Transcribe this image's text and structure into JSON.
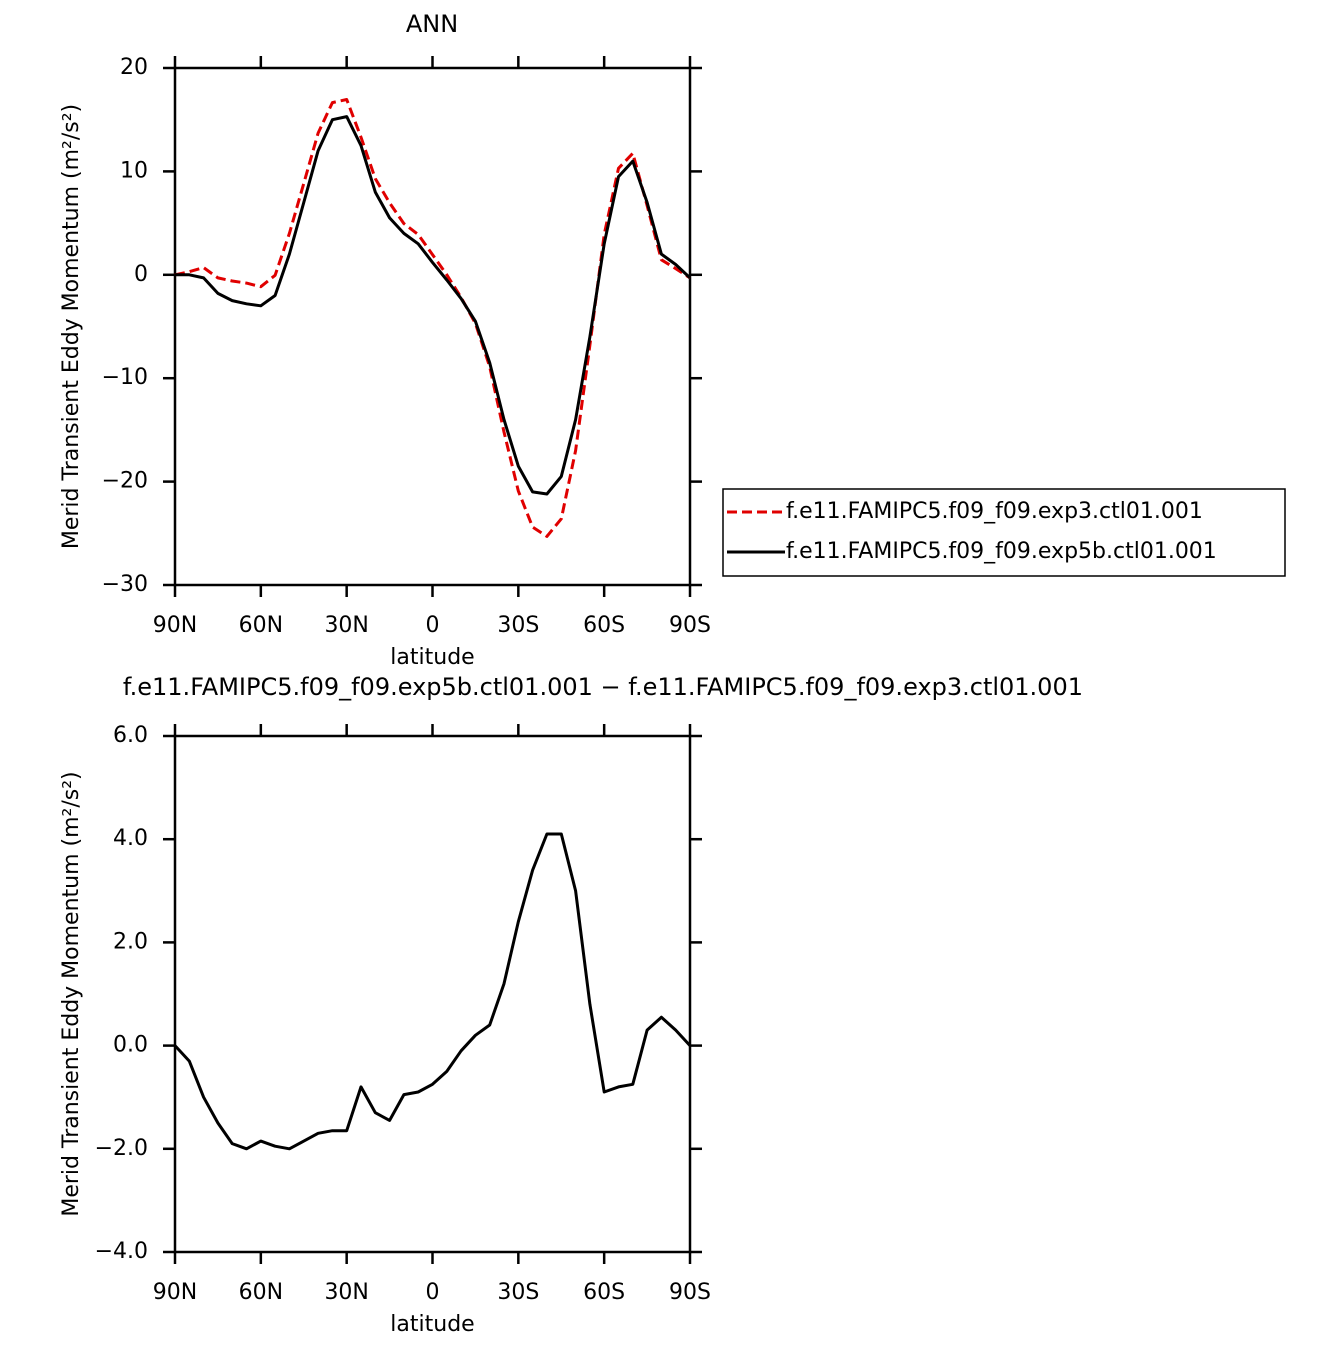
{
  "chart_data": [
    {
      "type": "line",
      "title": "ANN",
      "x_label": "latitude",
      "y_label": "Merid Transient Eddy Momentum (m²/s²)",
      "x": [
        90,
        85,
        80,
        75,
        70,
        65,
        60,
        55,
        50,
        45,
        40,
        35,
        30,
        25,
        20,
        15,
        10,
        5,
        0,
        -5,
        -10,
        -15,
        -20,
        -25,
        -30,
        -35,
        -40,
        -45,
        -50,
        -55,
        -60,
        -65,
        -70,
        -75,
        -80,
        -85,
        -90
      ],
      "xlim": [
        90,
        -90
      ],
      "xticks": [
        {
          "value": 90,
          "label": "90N"
        },
        {
          "value": 60,
          "label": "60N"
        },
        {
          "value": 30,
          "label": "30N"
        },
        0,
        {
          "value": -30,
          "label": "30S"
        },
        {
          "value": -60,
          "label": "60S"
        },
        {
          "value": -90,
          "label": "90S"
        }
      ],
      "ylim": [
        -30,
        20
      ],
      "yticks": [
        {
          "value": -30,
          "label": "−30"
        },
        {
          "value": -20,
          "label": "−20"
        },
        {
          "value": -10,
          "label": "−10"
        },
        0,
        10,
        20
      ],
      "legend": "right",
      "series": [
        {
          "name": "f.e11.FAMIPC5.f09_f09.exp3.ctl01.001",
          "color": "#e00000",
          "style": "dashed",
          "values": [
            0,
            0.3,
            0.7,
            -0.3,
            -0.6,
            -0.8,
            -1.15,
            -0.05,
            4,
            8.85,
            13.7,
            16.65,
            16.95,
            13.3,
            9.3,
            6.95,
            4.95,
            3.9,
            1.95,
            0,
            -2.2,
            -4.7,
            -8.9,
            -15.2,
            -20.9,
            -24.4,
            -25.3,
            -23.6,
            -17,
            -6.8,
            3.9,
            10.3,
            11.75,
            6.7,
            1.45,
            0.6,
            -0.3
          ]
        },
        {
          "name": "f.e11.FAMIPC5.f09_f09.exp5b.ctl01.001",
          "color": "#000000",
          "style": "solid",
          "values": [
            0,
            0,
            -0.3,
            -1.8,
            -2.5,
            -2.8,
            -3.0,
            -2.0,
            2,
            7,
            12,
            15,
            15.3,
            12.5,
            8,
            5.5,
            4,
            3,
            1.2,
            -0.5,
            -2.3,
            -4.5,
            -8.5,
            -14,
            -18.5,
            -21,
            -21.2,
            -19.5,
            -14,
            -6,
            3,
            9.5,
            11,
            7,
            2,
            1,
            -0.3
          ]
        }
      ]
    },
    {
      "type": "line",
      "title": "f.e11.FAMIPC5.f09_f09.exp5b.ctl01.001 − f.e11.FAMIPC5.f09_f09.exp3.ctl01.001",
      "x_label": "latitude",
      "y_label": "Merid Transient Eddy Momentum (m²/s²)",
      "x": [
        90,
        85,
        80,
        75,
        70,
        65,
        60,
        55,
        50,
        45,
        40,
        35,
        30,
        25,
        20,
        15,
        10,
        5,
        0,
        -5,
        -10,
        -15,
        -20,
        -25,
        -30,
        -35,
        -40,
        -45,
        -50,
        -55,
        -60,
        -65,
        -70,
        -75,
        -80,
        -85,
        -90
      ],
      "xlim": [
        90,
        -90
      ],
      "xticks": [
        {
          "value": 90,
          "label": "90N"
        },
        {
          "value": 60,
          "label": "60N"
        },
        {
          "value": 30,
          "label": "30N"
        },
        0,
        {
          "value": -30,
          "label": "30S"
        },
        {
          "value": -60,
          "label": "60S"
        },
        {
          "value": -90,
          "label": "90S"
        }
      ],
      "ylim": [
        -4,
        6
      ],
      "yticks": [
        {
          "value": -4,
          "label": "−4.0"
        },
        {
          "value": -2,
          "label": "−2.0"
        },
        {
          "value": 0,
          "label": "0.0"
        },
        {
          "value": 2,
          "label": "2.0"
        },
        {
          "value": 4,
          "label": "4.0"
        },
        {
          "value": 6,
          "label": "6.0"
        }
      ],
      "series": [
        {
          "color": "#000000",
          "style": "solid",
          "values": [
            0,
            -0.3,
            -1.0,
            -1.5,
            -1.9,
            -2.0,
            -1.85,
            -1.95,
            -2.0,
            -1.85,
            -1.7,
            -1.65,
            -1.65,
            -0.8,
            -1.3,
            -1.45,
            -0.95,
            -0.9,
            -0.75,
            -0.5,
            -0.1,
            0.2,
            0.4,
            1.2,
            2.4,
            3.4,
            4.1,
            4.1,
            3.0,
            0.8,
            -0.9,
            -0.8,
            -0.75,
            0.3,
            0.55,
            0.3,
            0
          ]
        }
      ]
    }
  ]
}
